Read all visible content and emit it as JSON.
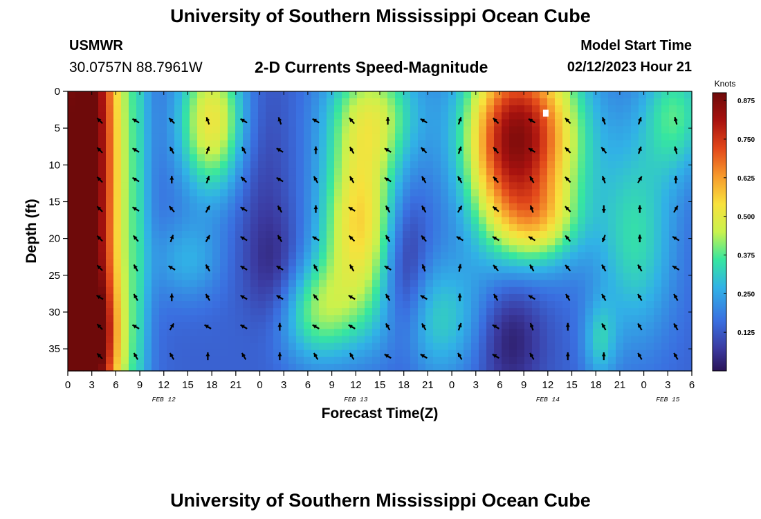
{
  "header": {
    "title": "University of Southern Mississippi Ocean Cube",
    "station": "USMWR",
    "coords": "30.0757N  88.7961W",
    "subtitle": "2-D Currents Speed-Magnitude",
    "model_start_label": "Model Start Time",
    "model_start_value": "02/12/2023 Hour 21"
  },
  "footer": {
    "title": "University of Southern Mississippi Ocean Cube"
  },
  "chart_data": {
    "type": "heatmap",
    "title": "2-D Currents Speed-Magnitude",
    "xlabel": "Forecast Time(Z)",
    "ylabel": "Depth (ft)",
    "x_ticks": [
      "0",
      "3",
      "6",
      "9",
      "12",
      "15",
      "18",
      "21",
      "0",
      "3",
      "6",
      "9",
      "12",
      "15",
      "18",
      "21",
      "0",
      "3",
      "6",
      "9",
      "12",
      "15",
      "18",
      "21",
      "0",
      "3",
      "6"
    ],
    "x_range_hours": [
      0,
      78
    ],
    "date_labels": [
      {
        "label": "FEB 12",
        "hour": 12
      },
      {
        "label": "FEB 13",
        "hour": 36
      },
      {
        "label": "FEB 14",
        "hour": 60
      },
      {
        "label": "FEB 15",
        "hour": 75
      }
    ],
    "y_ticks": [
      0,
      5,
      10,
      15,
      20,
      25,
      30,
      35
    ],
    "y_range_ft": [
      0,
      38
    ],
    "colorbar": {
      "unit": "Knots",
      "min": 0.0,
      "max": 0.9,
      "ticks": [
        "0.875",
        "0.750",
        "0.625",
        "0.500",
        "0.375",
        "0.250",
        "0.125"
      ],
      "tick_values": [
        0.875,
        0.75,
        0.625,
        0.5,
        0.375,
        0.25,
        0.125
      ]
    },
    "field_blobs": [
      {
        "hour": 2,
        "depth": 10,
        "sh": 3.5,
        "sd": 40,
        "amp": 0.85
      },
      {
        "hour": 2,
        "depth": 34,
        "sh": 3,
        "sd": 6,
        "amp": 0.3
      },
      {
        "hour": 18,
        "depth": 4,
        "sh": 3,
        "sd": 7,
        "amp": 0.38
      },
      {
        "hour": 15,
        "depth": 23,
        "sh": 3,
        "sd": 4,
        "amp": 0.12
      },
      {
        "hour": 36.5,
        "depth": 18,
        "sh": 3.5,
        "sd": 8,
        "amp": 0.4
      },
      {
        "hour": 38,
        "depth": 3,
        "sh": 4,
        "sd": 6,
        "amp": 0.3
      },
      {
        "hour": 31,
        "depth": 30,
        "sh": 4,
        "sd": 5,
        "amp": 0.25
      },
      {
        "hour": 57,
        "depth": 6,
        "sh": 5,
        "sd": 9,
        "amp": 0.65
      },
      {
        "hour": 59,
        "depth": 18,
        "sh": 3.5,
        "sd": 4,
        "amp": 0.2
      },
      {
        "hour": 71,
        "depth": 20,
        "sh": 3.5,
        "sd": 10,
        "amp": 0.2
      },
      {
        "hour": 76,
        "depth": 3,
        "sh": 3,
        "sd": 6,
        "amp": 0.22
      },
      {
        "hour": 46,
        "depth": 31,
        "sh": 5,
        "sd": 6,
        "amp": 0.18
      },
      {
        "hour": 66.5,
        "depth": 34,
        "sh": 1.5,
        "sd": 4,
        "amp": 0.15
      },
      {
        "hour": 54,
        "depth": 10,
        "sh": 3,
        "sd": 10,
        "amp": 0.12
      },
      {
        "hour": 9,
        "depth": 18,
        "sh": 1,
        "sd": 30,
        "amp": 0.08
      },
      {
        "hour": 42,
        "depth": 25,
        "sh": 2,
        "sd": 8,
        "amp": -0.18
      },
      {
        "hour": 26,
        "depth": 26,
        "sh": 2.5,
        "sd": 6,
        "amp": -0.12
      },
      {
        "hour": 55,
        "depth": 33,
        "sh": 3,
        "sd": 6,
        "amp": -0.15
      },
      {
        "hour": 24,
        "depth": 10,
        "sh": 2.5,
        "sd": 10,
        "amp": -0.06
      }
    ],
    "field_base": 0.14,
    "vector_hours": [
      4,
      8.5,
      13,
      17.5,
      22,
      26.5,
      31,
      35.5,
      40,
      44.5,
      49,
      53.5,
      58,
      62.5,
      67,
      71.5,
      76
    ],
    "vector_depths": [
      4,
      8,
      12,
      16,
      20,
      24,
      28,
      32,
      36
    ],
    "vector_directions_deg": [
      [
        315,
        300,
        315,
        340,
        300,
        340,
        300,
        320,
        0,
        300,
        20,
        315,
        300,
        315,
        340,
        20,
        345
      ],
      [
        315,
        300,
        330,
        20,
        330,
        300,
        0,
        330,
        300,
        315,
        20,
        320,
        300,
        315,
        320,
        20,
        345
      ],
      [
        315,
        300,
        0,
        20,
        315,
        300,
        330,
        330,
        300,
        330,
        330,
        320,
        330,
        315,
        340,
        30,
        0
      ],
      [
        315,
        300,
        320,
        30,
        300,
        330,
        0,
        300,
        330,
        330,
        30,
        310,
        340,
        315,
        180,
        0,
        30
      ],
      [
        315,
        320,
        20,
        30,
        300,
        330,
        300,
        315,
        330,
        320,
        300,
        300,
        300,
        320,
        200,
        0,
        300
      ],
      [
        315,
        330,
        300,
        330,
        300,
        300,
        330,
        330,
        300,
        340,
        10,
        320,
        330,
        320,
        330,
        330,
        300
      ],
      [
        300,
        330,
        0,
        330,
        300,
        300,
        320,
        300,
        330,
        300,
        0,
        330,
        300,
        330,
        330,
        330,
        330
      ],
      [
        315,
        300,
        30,
        300,
        300,
        0,
        300,
        300,
        330,
        330,
        20,
        300,
        340,
        0,
        330,
        330,
        330
      ],
      [
        315,
        330,
        330,
        0,
        330,
        0,
        330,
        330,
        300,
        300,
        330,
        300,
        330,
        0,
        0,
        330,
        330
      ]
    ]
  }
}
